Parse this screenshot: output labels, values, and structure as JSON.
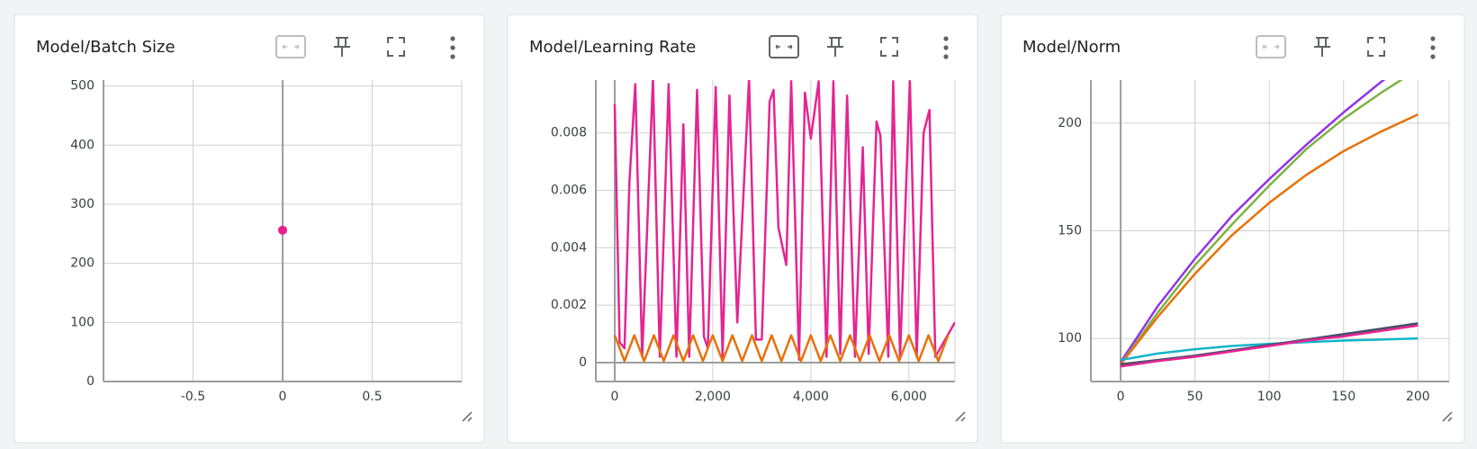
{
  "chart_data": [
    {
      "type": "scatter",
      "title": "Model/Batch Size",
      "x": [
        0
      ],
      "values": [
        256
      ],
      "color": "#e91e8c",
      "xlim": [
        -1,
        1
      ],
      "ylim": [
        0,
        510
      ],
      "xticks": [
        -0.5,
        0,
        0.5
      ],
      "yticks": [
        0,
        100,
        200,
        300,
        400,
        500
      ],
      "grid": true
    },
    {
      "type": "line",
      "title": "Model/Learning Rate",
      "series": [
        {
          "color": "#e52592",
          "x": [
            0,
            100,
            200,
            300,
            420,
            560,
            780,
            920,
            1100,
            1260,
            1400,
            1520,
            1680,
            1820,
            1900,
            2060,
            2200,
            2340,
            2500,
            2740,
            2880,
            3000,
            3160,
            3240,
            3340,
            3500,
            3600,
            3760,
            3880,
            4000,
            4160,
            4320,
            4460,
            4600,
            4740,
            4900,
            5060,
            5180,
            5340,
            5420,
            5580,
            5680,
            5820,
            6020,
            6160,
            6300,
            6420,
            6540,
            6940
          ],
          "values": [
            0.009,
            0.0007,
            0.0005,
            0.0063,
            0.0097,
            0.0002,
            0.0099,
            0.0002,
            0.0097,
            0.0002,
            0.0083,
            0.0002,
            0.0095,
            0.0009,
            0.0005,
            0.0096,
            0.0002,
            0.0093,
            0.0014,
            0.0099,
            0.0008,
            0.0008,
            0.0091,
            0.0095,
            0.0047,
            0.0034,
            0.0098,
            0.0001,
            0.0094,
            0.0078,
            0.0098,
            0.0002,
            0.0098,
            0.0003,
            0.0093,
            0.0002,
            0.0075,
            0.0003,
            0.0084,
            0.0079,
            0.0002,
            0.0098,
            0.0002,
            0.0098,
            0.0002,
            0.008,
            0.0088,
            0.0002,
            0.0014
          ]
        },
        {
          "color": "#e8710a",
          "x": [
            0,
            200,
            400,
            600,
            800,
            1000,
            1200,
            1400,
            1600,
            1800,
            2000,
            2200,
            2400,
            2600,
            2800,
            3000,
            3200,
            3400,
            3600,
            3800,
            4000,
            4200,
            4400,
            4600,
            4800,
            5000,
            5200,
            5400,
            5600,
            5800,
            6000,
            6200,
            6400,
            6600,
            6800
          ],
          "values": [
            0.00095,
            5e-05,
            0.00095,
            5e-05,
            0.00095,
            5e-05,
            0.00095,
            5e-05,
            0.00095,
            5e-05,
            0.00095,
            5e-05,
            0.00095,
            5e-05,
            0.00095,
            5e-05,
            0.00095,
            5e-05,
            0.00095,
            5e-05,
            0.00095,
            5e-05,
            0.00095,
            5e-05,
            0.00095,
            5e-05,
            0.00095,
            5e-05,
            0.00095,
            5e-05,
            0.00095,
            5e-05,
            0.00095,
            5e-05,
            0.00095
          ]
        }
      ],
      "xlim": [
        -385,
        6940
      ],
      "ylim": [
        -0.00066,
        0.00984
      ],
      "xticks": [
        0,
        {
          "value": 2000,
          "label": "2,000"
        },
        {
          "value": 4000,
          "label": "4,000"
        },
        {
          "value": 6000,
          "label": "6,000"
        }
      ],
      "yticks": [
        0,
        0.002,
        0.004,
        0.006,
        0.008
      ],
      "grid": true
    },
    {
      "type": "line",
      "title": "Model/Norm",
      "series": [
        {
          "color": "#9334e6",
          "x": [
            0,
            25,
            50,
            75,
            100,
            125,
            150,
            175,
            200
          ],
          "values": [
            89,
            115,
            137,
            157,
            174,
            190,
            205,
            219,
            232
          ]
        },
        {
          "color": "#7cb342",
          "x": [
            0,
            25,
            50,
            75,
            100,
            125,
            150,
            175,
            200
          ],
          "values": [
            88,
            112,
            134,
            153,
            171,
            188,
            202,
            214,
            225
          ]
        },
        {
          "color": "#e8710a",
          "x": [
            0,
            25,
            50,
            75,
            100,
            125,
            150,
            175,
            200
          ],
          "values": [
            88,
            110,
            130,
            148,
            163,
            176,
            187,
            196,
            204
          ]
        },
        {
          "color": "#12b5cb",
          "x": [
            0,
            25,
            50,
            75,
            100,
            125,
            150,
            175,
            200
          ],
          "values": [
            90,
            93,
            95,
            96.5,
            97.5,
            98.3,
            99,
            99.5,
            100
          ]
        },
        {
          "color": "#425066",
          "x": [
            0,
            25,
            50,
            75,
            100,
            125,
            150,
            175,
            200
          ],
          "values": [
            88,
            90,
            92,
            94.5,
            97,
            99.5,
            102,
            104.5,
            107
          ]
        },
        {
          "color": "#e52592",
          "x": [
            0,
            25,
            50,
            75,
            100,
            125,
            150,
            175,
            200
          ],
          "values": [
            87,
            89.5,
            91.5,
            94,
            96.5,
            99,
            101,
            103.5,
            106
          ]
        }
      ],
      "xlim": [
        -20,
        221
      ],
      "ylim": [
        80,
        220
      ],
      "xticks": [
        0,
        50,
        100,
        150,
        200
      ],
      "yticks": [
        100,
        150,
        200
      ],
      "grid": true
    }
  ]
}
